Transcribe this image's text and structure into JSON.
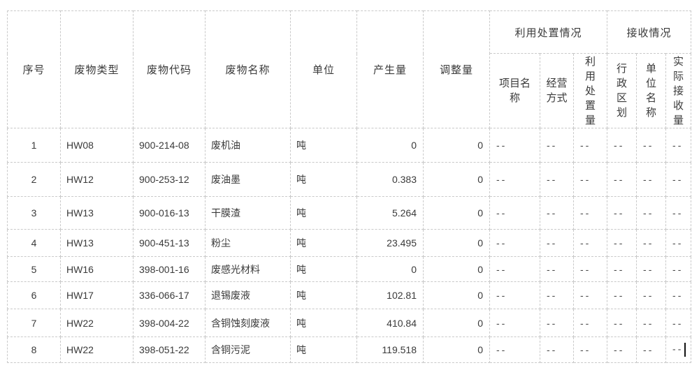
{
  "table": {
    "headers": {
      "seq": "序号",
      "waste_type": "废物类型",
      "waste_code": "废物代码",
      "waste_name": "废物名称",
      "unit": "单位",
      "produced": "产生量",
      "adjusted": "调整量"
    },
    "group_headers": {
      "disposal": "利用处置情况",
      "receiving": "接收情况"
    },
    "sub_headers": {
      "project_name": "项目名\n称",
      "operation_mode": "经营\n方式",
      "disposal_amount": "利\n用\n处\n置\n量",
      "admin_region": "行\n政\n区\n划",
      "unit_name": "单\n位\n名\n称",
      "actual_received": "实\n际\n接\n收\n量"
    },
    "rows": [
      {
        "seq": "1",
        "waste_type": "HW08",
        "waste_code": "900-214-08",
        "waste_name": "废机油",
        "unit": "吨",
        "produced": "0",
        "adjusted": "0",
        "project_name": "--",
        "operation_mode": "--",
        "disposal_amount": "--",
        "admin_region": "--",
        "unit_name": "--",
        "actual_received": "--"
      },
      {
        "seq": "2",
        "waste_type": "HW12",
        "waste_code": "900-253-12",
        "waste_name": "废油墨",
        "unit": "吨",
        "produced": "0.383",
        "adjusted": "0",
        "project_name": "--",
        "operation_mode": "--",
        "disposal_amount": "--",
        "admin_region": "--",
        "unit_name": "--",
        "actual_received": "--"
      },
      {
        "seq": "3",
        "waste_type": "HW13",
        "waste_code": "900-016-13",
        "waste_name": "干膜渣",
        "unit": "吨",
        "produced": "5.264",
        "adjusted": "0",
        "project_name": "--",
        "operation_mode": "--",
        "disposal_amount": "--",
        "admin_region": "--",
        "unit_name": "--",
        "actual_received": "--"
      },
      {
        "seq": "4",
        "waste_type": "HW13",
        "waste_code": "900-451-13",
        "waste_name": "粉尘",
        "unit": "吨",
        "produced": "23.495",
        "adjusted": "0",
        "project_name": "--",
        "operation_mode": "--",
        "disposal_amount": "--",
        "admin_region": "--",
        "unit_name": "--",
        "actual_received": "--"
      },
      {
        "seq": "5",
        "waste_type": "HW16",
        "waste_code": "398-001-16",
        "waste_name": "废感光材料",
        "unit": "吨",
        "produced": "0",
        "adjusted": "0",
        "project_name": "--",
        "operation_mode": "--",
        "disposal_amount": "--",
        "admin_region": "--",
        "unit_name": "--",
        "actual_received": "--"
      },
      {
        "seq": "6",
        "waste_type": "HW17",
        "waste_code": "336-066-17",
        "waste_name": "退锡废液",
        "unit": "吨",
        "produced": "102.81",
        "adjusted": "0",
        "project_name": "--",
        "operation_mode": "--",
        "disposal_amount": "--",
        "admin_region": "--",
        "unit_name": "--",
        "actual_received": "--"
      },
      {
        "seq": "7",
        "waste_type": "HW22",
        "waste_code": "398-004-22",
        "waste_name": "含铜蚀刻废液",
        "unit": "吨",
        "produced": "410.84",
        "adjusted": "0",
        "project_name": "--",
        "operation_mode": "--",
        "disposal_amount": "--",
        "admin_region": "--",
        "unit_name": "--",
        "actual_received": "--"
      },
      {
        "seq": "8",
        "waste_type": "HW22",
        "waste_code": "398-051-22",
        "waste_name": "含铜污泥",
        "unit": "吨",
        "produced": "119.518",
        "adjusted": "0",
        "project_name": "--",
        "operation_mode": "--",
        "disposal_amount": "--",
        "admin_region": "--",
        "unit_name": "--",
        "actual_received": "--"
      }
    ],
    "focus": {
      "row_index": 7,
      "column": "actual_received",
      "caret_visible": true
    }
  },
  "colors": {
    "background": "#ffffff",
    "border": "#c9c9c9",
    "text": "#3a3a3a",
    "caret": "#111111"
  }
}
